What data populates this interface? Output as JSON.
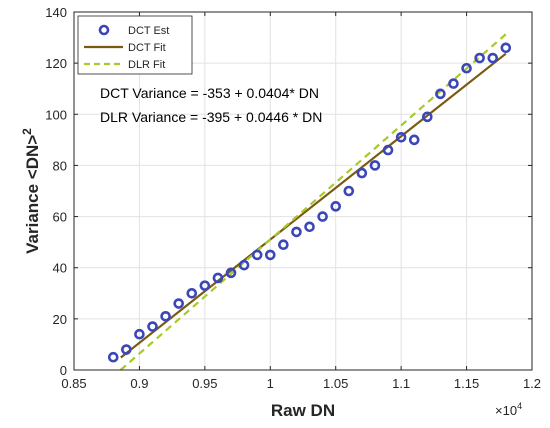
{
  "chart_data": {
    "type": "scatter",
    "xlabel": "Raw DN",
    "ylabel_main": "Variance <DN>",
    "ylabel_sup": "2",
    "x_exponent_base": "×10",
    "x_exponent_power": "4",
    "xlim": [
      0.85,
      1.2
    ],
    "ylim": [
      0,
      140
    ],
    "xticks": [
      "0.85",
      "0.9",
      "0.95",
      "1",
      "1.05",
      "1.1",
      "1.15",
      "1.2"
    ],
    "yticks": [
      "0",
      "20",
      "40",
      "60",
      "80",
      "100",
      "120",
      "140"
    ],
    "grid": true,
    "legend_position": "top-left",
    "colors": {
      "est": "#3b47b8",
      "dct_fit": "#7a5a10",
      "dlr_fit": "#a8c92a",
      "grid": "#e2e2e2",
      "axis": "#262626"
    },
    "series": [
      {
        "name": "DCT Est",
        "kind": "points",
        "x": [
          0.88,
          0.89,
          0.9,
          0.91,
          0.92,
          0.93,
          0.94,
          0.95,
          0.96,
          0.97,
          0.98,
          0.99,
          1.0,
          1.01,
          1.02,
          1.03,
          1.04,
          1.05,
          1.06,
          1.07,
          1.08,
          1.09,
          1.1,
          1.11,
          1.12,
          1.13,
          1.14,
          1.15,
          1.16,
          1.17,
          1.18
        ],
        "y": [
          5,
          8,
          14,
          17,
          21,
          26,
          30,
          33,
          36,
          38,
          41,
          45,
          45,
          49,
          54,
          56,
          60,
          64,
          70,
          77,
          80,
          86,
          91,
          90,
          99,
          108,
          112,
          118,
          122,
          122,
          126
        ]
      },
      {
        "name": "DCT Fit",
        "kind": "line",
        "x": [
          0.8858,
          1.18
        ],
        "y": [
          4.9,
          123.7
        ]
      },
      {
        "name": "DLR Fit",
        "kind": "dashed-line",
        "x": [
          0.8856,
          1.18
        ],
        "y": [
          0,
          131.3
        ]
      }
    ],
    "annotations": [
      "DCT Variance = -353 + 0.0404* DN",
      "DLR Variance = -395 + 0.0446 * DN"
    ]
  }
}
